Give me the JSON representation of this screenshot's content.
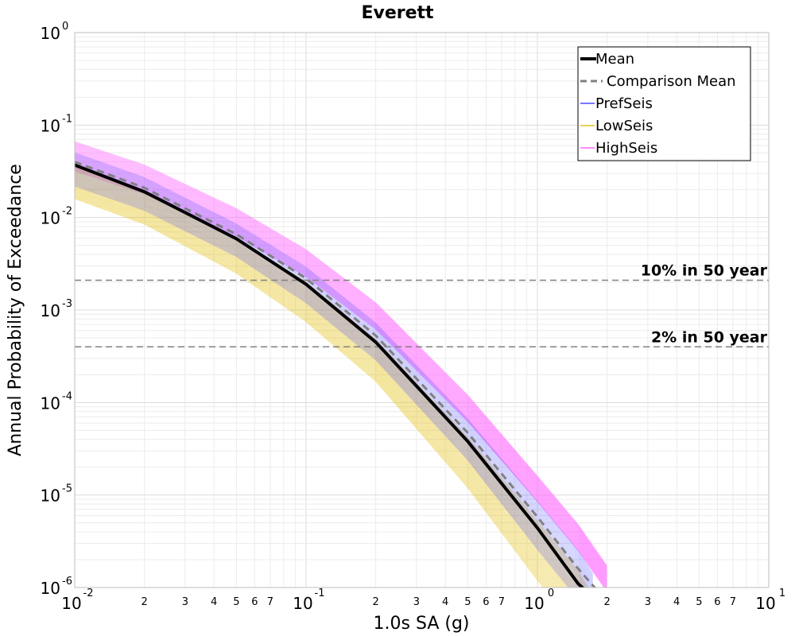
{
  "chart_data": {
    "type": "line",
    "title": "Everett",
    "xlabel": "1.0s SA (g)",
    "ylabel": "Annual Probability of Exceedance",
    "xscale": "log",
    "yscale": "log",
    "xlim": [
      0.01,
      10
    ],
    "ylim": [
      1e-06,
      1
    ],
    "grid": true,
    "legend_position": "top-right",
    "x_major_ticks": [
      {
        "base": "10",
        "exp": "-2"
      },
      {
        "base": "10",
        "exp": "-1"
      },
      {
        "base": "10",
        "exp": "0"
      },
      {
        "base": "10",
        "exp": "1"
      }
    ],
    "y_major_ticks": [
      {
        "base": "10",
        "exp": "0"
      },
      {
        "base": "10",
        "exp": "-1"
      },
      {
        "base": "10",
        "exp": "-2"
      },
      {
        "base": "10",
        "exp": "-3"
      },
      {
        "base": "10",
        "exp": "-4"
      },
      {
        "base": "10",
        "exp": "-5"
      },
      {
        "base": "10",
        "exp": "-6"
      }
    ],
    "x_minor_tick_labels": [
      "2",
      "3",
      "4",
      "5",
      "6",
      "7"
    ],
    "reference_lines": [
      {
        "label": "10% in 50 year",
        "y": 0.0021
      },
      {
        "label": "2% in 50 year",
        "y": 0.0004
      }
    ],
    "series": [
      {
        "name": "Mean",
        "color": "#000000",
        "style": "solid",
        "x": [
          0.01,
          0.02,
          0.05,
          0.1,
          0.2,
          0.5,
          1.0,
          1.5,
          1.6
        ],
        "y": [
          0.037,
          0.019,
          0.0059,
          0.0019,
          0.00045,
          3.8e-05,
          4.4e-06,
          1.1e-06,
          9.5e-07
        ]
      },
      {
        "name": "Comparison Mean",
        "color": "#808080",
        "style": "dashed",
        "x": [
          0.01,
          0.02,
          0.05,
          0.1,
          0.2,
          0.5,
          1.0,
          1.5,
          1.8
        ],
        "y": [
          0.04,
          0.021,
          0.0066,
          0.0022,
          0.00053,
          4.7e-05,
          5.8e-06,
          1.6e-06,
          9.5e-07
        ]
      },
      {
        "name": "PrefSeis",
        "color": "#4a4aff",
        "style": "band",
        "x": [
          0.01,
          0.02,
          0.05,
          0.1,
          0.2,
          0.5,
          1.0,
          1.5,
          1.8
        ],
        "y_low": [
          0.022,
          0.012,
          0.0038,
          0.0012,
          0.00029,
          2.4e-05,
          2.6e-06,
          7.5e-07,
          3e-07
        ],
        "y_high": [
          0.05,
          0.027,
          0.0085,
          0.0029,
          0.00072,
          6.6e-05,
          8.5e-06,
          2.5e-06,
          1.2e-06
        ]
      },
      {
        "name": "LowSeis",
        "color": "#e6c21a",
        "style": "band",
        "x": [
          0.01,
          0.02,
          0.05,
          0.1,
          0.2,
          0.5,
          1.0,
          1.5,
          1.8
        ],
        "y_low": [
          0.016,
          0.0085,
          0.0025,
          0.00075,
          0.00017,
          1.2e-05,
          1.2e-06,
          3.5e-07,
          1.5e-07
        ],
        "y_high": [
          0.035,
          0.019,
          0.006,
          0.002,
          0.00048,
          4.2e-05,
          5.2e-06,
          1.5e-06,
          7e-07
        ]
      },
      {
        "name": "HighSeis",
        "color": "#ff66ff",
        "style": "band",
        "x": [
          0.01,
          0.02,
          0.05,
          0.1,
          0.2,
          0.5,
          1.0,
          1.5,
          2.0
        ],
        "y_low": [
          0.032,
          0.018,
          0.0063,
          0.0023,
          0.00062,
          6.2e-05,
          8.5e-06,
          2.5e-06,
          9e-07
        ],
        "y_high": [
          0.066,
          0.037,
          0.0125,
          0.0045,
          0.0012,
          0.00012,
          1.6e-05,
          4.8e-06,
          1.7e-06
        ]
      }
    ]
  }
}
